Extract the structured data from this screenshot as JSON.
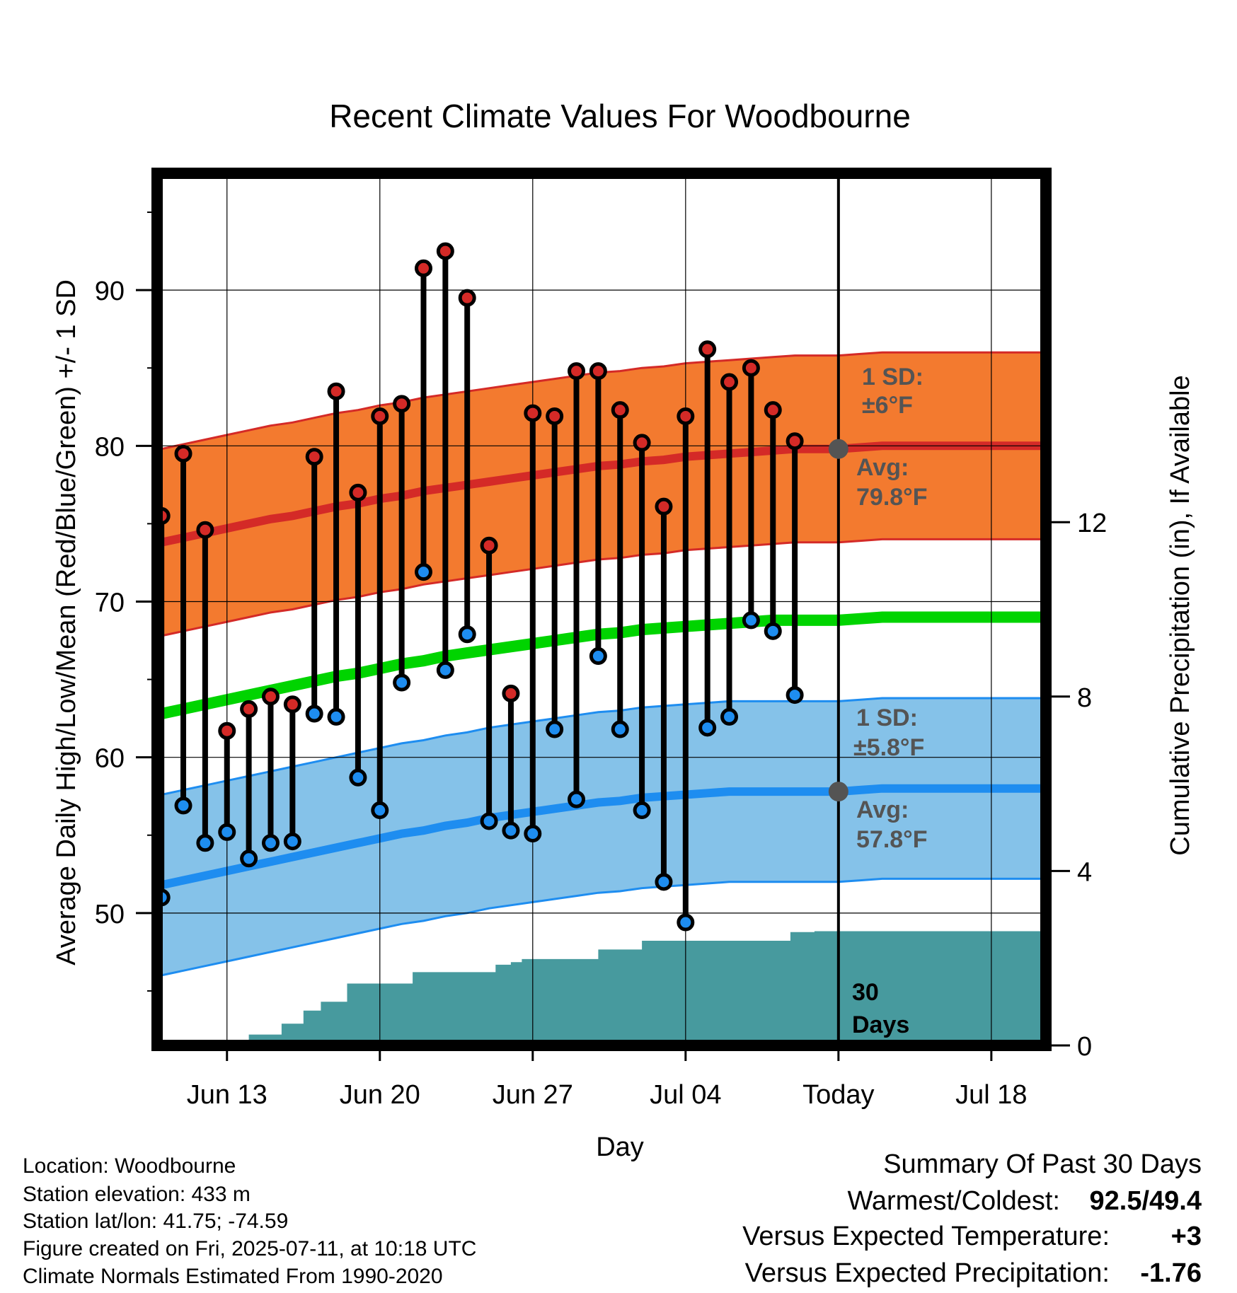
{
  "chart_data": {
    "type": "line",
    "title": "Recent Climate Values For Woodbourne",
    "xlabel": "Day",
    "ylabel": "Average Daily High/Low/Mean (Red/Blue/Green) +/- 1 SD",
    "ylabel_right": "Cumulative Precipitation (in), If Available",
    "x_ticks": [
      {
        "day": 3,
        "label": "Jun 13"
      },
      {
        "day": 10,
        "label": "Jun 20"
      },
      {
        "day": 17,
        "label": "Jun 27"
      },
      {
        "day": 24,
        "label": "Jul 04"
      },
      {
        "day": 31,
        "label": "Today"
      },
      {
        "day": 38,
        "label": "Jul 18"
      }
    ],
    "xlim": [
      -0.2,
      40.5
    ],
    "ylim": [
      41.5,
      97.5
    ],
    "y_ticks": [
      50,
      60,
      70,
      80,
      90
    ],
    "y2lim": [
      0,
      20
    ],
    "y2_ticks": [
      0,
      4,
      8,
      12
    ],
    "today_day": 31,
    "x_days": [
      0,
      1,
      2,
      3,
      4,
      5,
      6,
      7,
      8,
      9,
      10,
      11,
      12,
      13,
      14,
      15,
      16,
      17,
      18,
      19,
      20,
      21,
      22,
      23,
      24,
      25,
      26,
      27,
      28,
      29,
      30,
      31,
      32,
      33,
      34,
      35,
      36,
      37,
      38,
      39,
      40,
      40.5
    ],
    "normals": {
      "avg_high": [
        73.8,
        74.1,
        74.4,
        74.7,
        75.0,
        75.3,
        75.5,
        75.8,
        76.1,
        76.3,
        76.6,
        76.8,
        77.1,
        77.3,
        77.5,
        77.7,
        77.9,
        78.1,
        78.3,
        78.5,
        78.7,
        78.8,
        79.0,
        79.1,
        79.3,
        79.4,
        79.5,
        79.6,
        79.7,
        79.8,
        79.8,
        79.8,
        79.9,
        80.0,
        80.0,
        80.0,
        80.0,
        80.0,
        80.0,
        80.0,
        80.0,
        80.0
      ],
      "avg_low": [
        51.8,
        52.1,
        52.4,
        52.7,
        53.0,
        53.3,
        53.6,
        53.9,
        54.2,
        54.5,
        54.8,
        55.1,
        55.3,
        55.6,
        55.8,
        56.1,
        56.3,
        56.5,
        56.7,
        56.9,
        57.1,
        57.2,
        57.4,
        57.5,
        57.6,
        57.7,
        57.8,
        57.8,
        57.8,
        57.8,
        57.8,
        57.8,
        57.9,
        58.0,
        58.0,
        58.0,
        58.0,
        58.0,
        58.0,
        58.0,
        58.0,
        58.0
      ],
      "avg_mean": [
        62.8,
        63.1,
        63.4,
        63.7,
        64.0,
        64.3,
        64.6,
        64.9,
        65.2,
        65.4,
        65.7,
        66.0,
        66.2,
        66.5,
        66.7,
        66.9,
        67.1,
        67.3,
        67.5,
        67.7,
        67.9,
        68.0,
        68.2,
        68.3,
        68.4,
        68.5,
        68.6,
        68.7,
        68.8,
        68.8,
        68.8,
        68.8,
        68.9,
        69.0,
        69.0,
        69.0,
        69.0,
        69.0,
        69.0,
        69.0,
        69.0,
        69.0
      ],
      "high_sd": 6,
      "low_sd": 5.8
    },
    "daily": {
      "days": [
        0,
        1,
        2,
        3,
        4,
        5,
        6,
        7,
        8,
        9,
        10,
        11,
        12,
        13,
        14,
        15,
        16,
        17,
        18,
        19,
        20,
        21,
        22,
        23,
        24,
        25,
        26,
        27,
        28,
        29
      ],
      "highs": [
        75.5,
        79.5,
        74.6,
        61.7,
        63.1,
        63.9,
        63.4,
        79.3,
        83.5,
        77.0,
        81.9,
        82.7,
        91.4,
        92.5,
        89.5,
        73.6,
        64.1,
        82.1,
        81.9,
        84.8,
        84.8,
        82.3,
        80.2,
        76.1,
        81.9,
        86.2,
        84.1,
        85.0,
        82.3,
        80.3
      ],
      "lows": [
        51.0,
        56.9,
        54.5,
        55.2,
        53.5,
        54.5,
        54.6,
        62.8,
        62.6,
        58.7,
        56.6,
        64.8,
        71.9,
        65.6,
        67.9,
        55.9,
        55.3,
        55.1,
        61.8,
        57.3,
        66.5,
        61.8,
        56.6,
        52.0,
        49.4,
        61.9,
        62.6,
        68.8,
        68.1,
        64.0
      ]
    },
    "precip_cumulative": {
      "days": [
        3,
        4,
        4.9,
        5.5,
        6.5,
        7.3,
        8.5,
        10.5,
        11.5,
        12.6,
        14.2,
        15.3,
        16,
        16.5,
        17.2,
        18,
        19,
        20,
        21,
        22,
        23,
        24,
        25,
        26,
        27,
        28,
        28.8,
        29.9,
        40.5
      ],
      "values": [
        0,
        0.25,
        0.25,
        0.5,
        0.8,
        1.0,
        1.42,
        1.42,
        1.68,
        1.68,
        1.68,
        1.85,
        1.91,
        1.98,
        1.98,
        1.98,
        1.98,
        2.2,
        2.2,
        2.4,
        2.4,
        2.4,
        2.4,
        2.4,
        2.4,
        2.4,
        2.6,
        2.62,
        2.62
      ]
    },
    "annotations": {
      "high_sd_title": "1 SD:",
      "high_sd_value": "±6°F",
      "high_avg_title": "Avg:",
      "high_avg_value": "79.8°F",
      "low_sd_title": "1 SD:",
      "low_sd_value": "±5.8°F",
      "low_avg_title": "Avg:",
      "low_avg_value": "57.8°F",
      "days_number": "30",
      "days_word": "Days"
    },
    "colors": {
      "high_band": "#F37A2F",
      "high_line": "#D42A27",
      "low_band": "#85C2E9",
      "low_line": "#1E8DF0",
      "mean_line": "#00D400",
      "precip": "#479A9E",
      "high_marker": "#D42A27",
      "low_marker": "#1E8DF0",
      "today_dot": "#545454",
      "annotation_text": "#545454",
      "positive_value": "#D42A27",
      "precip_value": "#A0522D"
    },
    "grid": true
  },
  "info": {
    "location": "Location: Woodbourne",
    "elevation": "Station elevation: 433 m",
    "latlon": "Station lat/lon: 41.75; -74.59",
    "created": "Figure created on Fri, 2025-07-11, at 10:18 UTC",
    "normals": "Climate Normals Estimated From 1990-2020"
  },
  "summary": {
    "title": "Summary Of Past 30 Days",
    "warm_cold_label": "Warmest/Coldest:",
    "warm_cold_value": "92.5/49.4",
    "temp_label": "Versus Expected Temperature:",
    "temp_value": "+3",
    "precip_label": "Versus Expected Precipitation:",
    "precip_value": "-1.76"
  }
}
